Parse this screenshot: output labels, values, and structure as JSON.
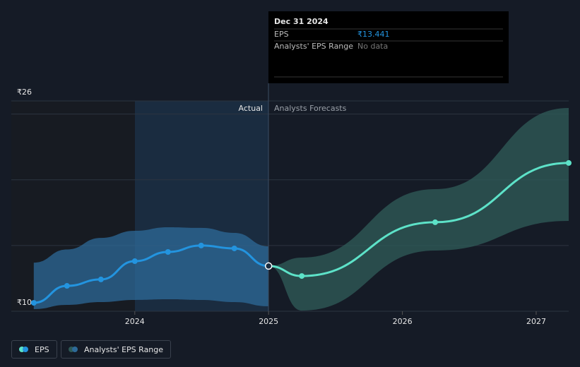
{
  "chart_data": {
    "type": "line",
    "xlim": [
      2023.077,
      2027.243
    ],
    "xticks": [
      2024,
      2025,
      2026,
      2027
    ],
    "ylim": [
      10,
      26
    ],
    "yticks": [
      {
        "value": 10,
        "label": "₹10"
      },
      {
        "value": 26,
        "label": "₹26"
      }
    ],
    "gridlines": [
      15,
      20,
      25
    ],
    "divider_label_left": "Actual",
    "divider_label_right": "Analysts Forecasts",
    "divider_x": 2025,
    "series": [
      {
        "name": "EPS",
        "color": "#2394df",
        "x": [
          2023.245,
          2023.493,
          2023.747,
          2024.0,
          2024.248,
          2024.496,
          2024.744,
          2025.0
        ],
        "values": [
          10.64,
          11.93,
          12.42,
          13.81,
          14.51,
          15.0,
          14.78,
          13.441
        ]
      }
    ],
    "forecast": {
      "color": "#5de2c8",
      "x": [
        2025.0,
        2025.248,
        2026.245,
        2027.243
      ],
      "values": [
        13.441,
        12.68,
        16.77,
        21.28
      ]
    },
    "range": {
      "name": "Analysts' EPS Range",
      "color": "#2d6a98",
      "x": [
        2023.245,
        2023.493,
        2023.747,
        2024.0,
        2024.248,
        2024.496,
        2024.744,
        2025.0
      ],
      "high": [
        13.7,
        14.7,
        15.58,
        16.12,
        16.39,
        16.34,
        15.96,
        14.94
      ],
      "low": [
        10.16,
        10.48,
        10.7,
        10.86,
        10.91,
        10.86,
        10.7,
        10.38
      ]
    },
    "forecast_range": {
      "color": "#2e5956",
      "x": [
        2025.0,
        2025.248,
        2026.245,
        2027.243
      ],
      "high": [
        13.441,
        14.08,
        19.29,
        25.46
      ],
      "low": [
        13.441,
        10.05,
        14.62,
        16.87
      ]
    },
    "tooltip": {
      "date": "Dec 31 2024",
      "eps_label": "EPS",
      "eps_value": "₹13.441",
      "range_label": "Analysts' EPS Range",
      "range_value": "No data"
    }
  }
}
